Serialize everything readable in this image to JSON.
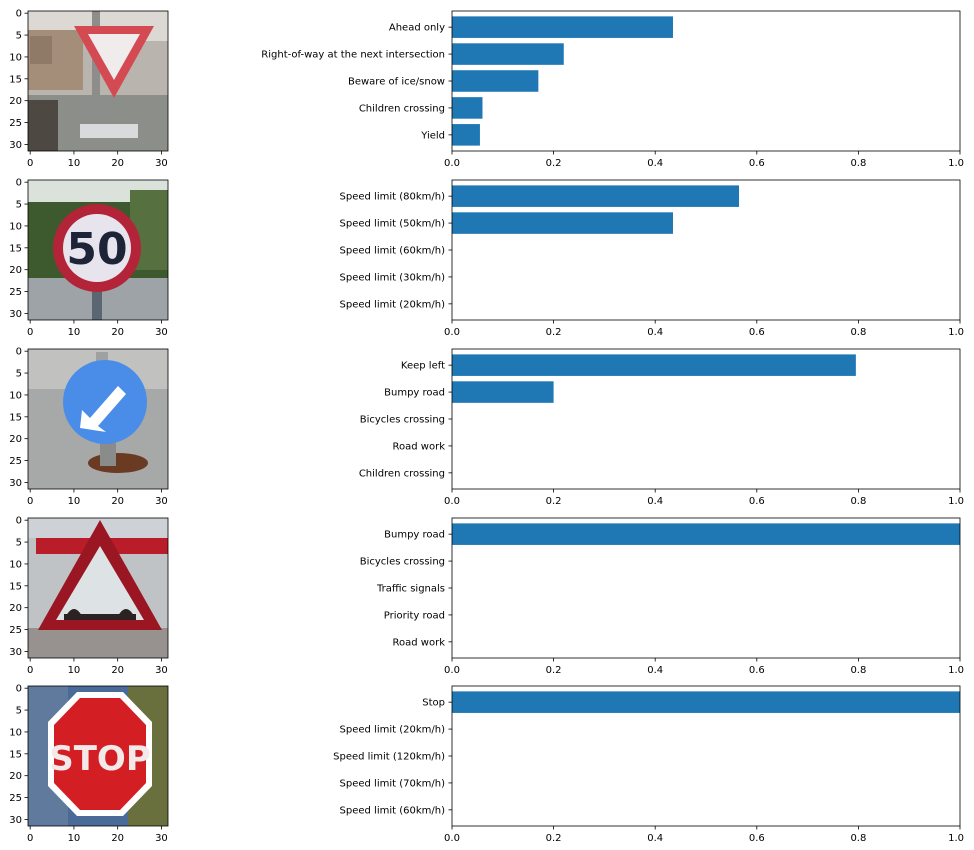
{
  "chart_data": [
    {
      "type": "image",
      "content": "yield-sign-photo",
      "xticks": [
        0,
        10,
        20,
        30
      ],
      "yticks": [
        0,
        5,
        10,
        15,
        20,
        25,
        30
      ],
      "xlim": [
        -0.5,
        31.5
      ],
      "ylim": [
        31.5,
        -0.5
      ]
    },
    {
      "type": "bar",
      "orientation": "horizontal",
      "categories": [
        "Ahead only",
        "Right-of-way at the next intersection",
        "Beware of ice/snow",
        "Children crossing",
        "Yield"
      ],
      "values": [
        0.435,
        0.22,
        0.17,
        0.06,
        0.055
      ],
      "xlim": [
        0,
        1
      ],
      "xticks": [
        "0.0",
        "0.2",
        "0.4",
        "0.6",
        "0.8",
        "1.0"
      ],
      "color": "#1f77b4"
    },
    {
      "type": "image",
      "content": "speed-limit-50-sign-photo",
      "xticks": [
        0,
        10,
        20,
        30
      ],
      "yticks": [
        0,
        5,
        10,
        15,
        20,
        25,
        30
      ],
      "xlim": [
        -0.5,
        31.5
      ],
      "ylim": [
        31.5,
        -0.5
      ]
    },
    {
      "type": "bar",
      "orientation": "horizontal",
      "categories": [
        "Speed limit (80km/h)",
        "Speed limit (50km/h)",
        "Speed limit (60km/h)",
        "Speed limit (30km/h)",
        "Speed limit (20km/h)"
      ],
      "values": [
        0.565,
        0.435,
        0.0,
        0.0,
        0.0
      ],
      "xlim": [
        0,
        1
      ],
      "xticks": [
        "0.0",
        "0.2",
        "0.4",
        "0.6",
        "0.8",
        "1.0"
      ],
      "color": "#1f77b4"
    },
    {
      "type": "image",
      "content": "keep-left-sign-photo",
      "xticks": [
        0,
        10,
        20,
        30
      ],
      "yticks": [
        0,
        5,
        10,
        15,
        20,
        25,
        30
      ],
      "xlim": [
        -0.5,
        31.5
      ],
      "ylim": [
        31.5,
        -0.5
      ]
    },
    {
      "type": "bar",
      "orientation": "horizontal",
      "categories": [
        "Keep left",
        "Bumpy road",
        "Bicycles crossing",
        "Road work",
        "Children crossing"
      ],
      "values": [
        0.795,
        0.2,
        0.0,
        0.0,
        0.0
      ],
      "xlim": [
        0,
        1
      ],
      "xticks": [
        "0.0",
        "0.2",
        "0.4",
        "0.6",
        "0.8",
        "1.0"
      ],
      "color": "#1f77b4"
    },
    {
      "type": "image",
      "content": "bumpy-road-sign-photo",
      "xticks": [
        0,
        10,
        20,
        30
      ],
      "yticks": [
        0,
        5,
        10,
        15,
        20,
        25,
        30
      ],
      "xlim": [
        -0.5,
        31.5
      ],
      "ylim": [
        31.5,
        -0.5
      ]
    },
    {
      "type": "bar",
      "orientation": "horizontal",
      "categories": [
        "Bumpy road",
        "Bicycles crossing",
        "Traffic signals",
        "Priority road",
        "Road work"
      ],
      "values": [
        1.0,
        0.0,
        0.0,
        0.0,
        0.0
      ],
      "xlim": [
        0,
        1
      ],
      "xticks": [
        "0.0",
        "0.2",
        "0.4",
        "0.6",
        "0.8",
        "1.0"
      ],
      "color": "#1f77b4"
    },
    {
      "type": "image",
      "content": "stop-sign-photo",
      "sign_text": "STOP",
      "xticks": [
        0,
        10,
        20,
        30
      ],
      "yticks": [
        0,
        5,
        10,
        15,
        20,
        25,
        30
      ],
      "xlim": [
        -0.5,
        31.5
      ],
      "ylim": [
        31.5,
        -0.5
      ]
    },
    {
      "type": "bar",
      "orientation": "horizontal",
      "categories": [
        "Stop",
        "Speed limit (20km/h)",
        "Speed limit (120km/h)",
        "Speed limit (70km/h)",
        "Speed limit (60km/h)"
      ],
      "values": [
        1.0,
        0.0,
        0.0,
        0.0,
        0.0
      ],
      "xlim": [
        0,
        1
      ],
      "xticks": [
        "0.0",
        "0.2",
        "0.4",
        "0.6",
        "0.8",
        "1.0"
      ],
      "color": "#1f77b4"
    }
  ]
}
